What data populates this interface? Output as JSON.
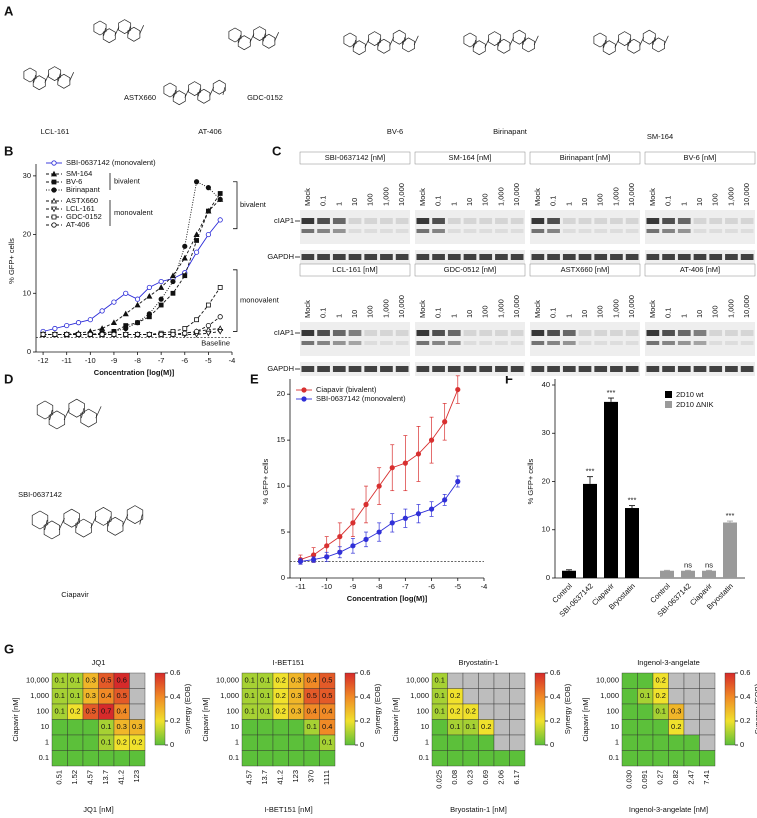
{
  "panels": [
    "A",
    "B",
    "C",
    "D",
    "E",
    "F",
    "G"
  ],
  "structures": {
    "A": [
      "LCL-161",
      "ASTX660",
      "AT-406",
      "GDC-0152",
      "BV-6",
      "Birinapant",
      "SM-164"
    ],
    "D": [
      "SBI-0637142",
      "Ciapavir"
    ]
  },
  "blots": {
    "titles": [
      "SBI-0637142 [nM]",
      "SM-164 [nM]",
      "Birinapant [nM]",
      "BV-6 [nM]",
      "LCL-161 [nM]",
      "GDC-0512 [nM]",
      "ASTX660 [nM]",
      "AT-406 [nM]"
    ],
    "lanes": [
      "Mock",
      "0.1",
      "1",
      "10",
      "100",
      "1,000",
      "10,000"
    ],
    "proteins": [
      "cIAP1",
      "GAPDH"
    ]
  },
  "chart_data": [
    {
      "type": "line",
      "x": [
        -12,
        -11.5,
        -11,
        -10.5,
        -10,
        -9.5,
        -9,
        -8.5,
        -8,
        -7.5,
        -7,
        -6.5,
        -6,
        -5.5,
        -5,
        -4.5
      ],
      "xlim": [
        -12.3,
        -4
      ],
      "xticks": [
        -12,
        -11,
        -10,
        -9,
        -8,
        -7,
        -6,
        -5,
        -4
      ],
      "ylim": [
        0,
        31
      ],
      "yticks": [
        0,
        10,
        20,
        30
      ],
      "xlabel": "Concentration [log(M)]",
      "ylabel": "% GFP+ cells",
      "baseline": 2.5,
      "baseline_label": "Baseline",
      "legend_group_labels": [
        "bivalent",
        "monovalent"
      ],
      "annotations": [
        "bivalent",
        "monovalent"
      ],
      "series": [
        {
          "name": "SBI-0637142 (monovalent)",
          "color": "#2a2ad8",
          "marker": "circle-open",
          "dash": "",
          "values": [
            3.5,
            4,
            4.5,
            5,
            5.5,
            7,
            8.5,
            10,
            9,
            11,
            12,
            12.5,
            13.5,
            17,
            20,
            22.5
          ]
        },
        {
          "name": "SM-164",
          "color": "#111111",
          "marker": "triangle",
          "dash": "3 2",
          "values": [
            3,
            3,
            3,
            3.2,
            3.5,
            4,
            5,
            6.5,
            8,
            9.5,
            11,
            13,
            16,
            20,
            24,
            26
          ]
        },
        {
          "name": "BV-6",
          "color": "#111111",
          "marker": "square",
          "dash": "3 2",
          "values": [
            3,
            3,
            3,
            3,
            3,
            3.2,
            3.5,
            4.5,
            5,
            6,
            8,
            10,
            13,
            19,
            24,
            27
          ]
        },
        {
          "name": "Birinapant",
          "color": "#111111",
          "marker": "circle",
          "dash": "1 1.5",
          "values": [
            3,
            3,
            3,
            3,
            3,
            3,
            3.5,
            4,
            5,
            6.5,
            9,
            12,
            18,
            29,
            28,
            26
          ]
        },
        {
          "name": "ASTX660",
          "color": "#111111",
          "marker": "triangle-open",
          "dash": "3 2",
          "values": [
            3,
            3,
            3,
            3,
            3,
            3,
            3,
            3,
            3,
            3,
            3,
            3,
            3.2,
            3.5,
            3.8,
            4
          ]
        },
        {
          "name": "LCL-161",
          "color": "#111111",
          "marker": "triangle-down-open",
          "dash": "3 2",
          "values": [
            3,
            3,
            3,
            3,
            3,
            3,
            3,
            3,
            3,
            3,
            3,
            3,
            3,
            3,
            3.2,
            3.5
          ]
        },
        {
          "name": "GDC-0152",
          "color": "#111111",
          "marker": "square-open",
          "dash": "3 2",
          "values": [
            3,
            3,
            3,
            3,
            3,
            3,
            3,
            3,
            3,
            3,
            3.2,
            3.5,
            4,
            5.5,
            8,
            11
          ]
        },
        {
          "name": "AT-406",
          "color": "#111111",
          "marker": "circle-open",
          "dash": "3 2",
          "values": [
            3,
            3,
            3,
            3,
            3,
            3,
            3,
            3,
            3,
            3,
            3,
            3,
            3.2,
            3.5,
            4.5,
            6
          ]
        }
      ]
    },
    {
      "type": "line",
      "x": [
        -11,
        -10.5,
        -10,
        -9.5,
        -9,
        -8.5,
        -8,
        -7.5,
        -7,
        -6.5,
        -6,
        -5.5,
        -5
      ],
      "xlim": [
        -11.4,
        -4
      ],
      "xticks": [
        -11,
        -10,
        -9,
        -8,
        -7,
        -6,
        -5,
        -4
      ],
      "ylim": [
        0,
        21
      ],
      "yticks": [
        0,
        5,
        10,
        15,
        20
      ],
      "xlabel": "Concentration [log(M)]",
      "ylabel": "% GFP+ cells",
      "baseline": 1.8,
      "series": [
        {
          "name": "Ciapavir (bivalent)",
          "color": "#d83030",
          "marker": "circle",
          "dash": "",
          "values": [
            2,
            2.5,
            3.5,
            4.5,
            6,
            8,
            10,
            12,
            12.5,
            13.5,
            15,
            17,
            20.5
          ],
          "errors": [
            0.5,
            0.8,
            1,
            1.5,
            1.5,
            2,
            2,
            2.5,
            3,
            3,
            2.5,
            2,
            1.5
          ]
        },
        {
          "name": "SBI-0637142 (monovalent)",
          "color": "#3030d8",
          "marker": "circle",
          "dash": "",
          "values": [
            1.8,
            2,
            2.3,
            2.8,
            3.5,
            4.2,
            5,
            6,
            6.5,
            7,
            7.5,
            8.5,
            10.5
          ],
          "errors": [
            0.3,
            0.3,
            0.5,
            0.6,
            0.8,
            0.8,
            1,
            1,
            1,
            1,
            0.8,
            0.6,
            0.6
          ]
        }
      ]
    },
    {
      "type": "bar",
      "categories": [
        "Control",
        "SBI-0637142",
        "Ciapavir",
        "Bryostatin",
        "Control",
        "SBI-0637142",
        "Ciapavir",
        "Bryostatin"
      ],
      "ylim": [
        0,
        40
      ],
      "yticks": [
        0,
        10,
        20,
        30,
        40
      ],
      "ylabel": "% GFP+ cells",
      "series": [
        {
          "name": "2D10 wt",
          "color": "#000000",
          "values": [
            1.5,
            19.5,
            36.5,
            14.5,
            null,
            null,
            null,
            null
          ],
          "errors": [
            0.2,
            1.5,
            0.8,
            0.5,
            null,
            null,
            null,
            null
          ],
          "significance": [
            null,
            "***",
            "***",
            "***",
            null,
            null,
            null,
            null
          ]
        },
        {
          "name": "2D10 ΔNIK",
          "color": "#9a9a9a",
          "values": [
            null,
            null,
            null,
            null,
            1.5,
            1.5,
            1.5,
            11.5
          ],
          "errors": [
            null,
            null,
            null,
            null,
            0.1,
            0.1,
            0.1,
            0.3
          ],
          "significance": [
            null,
            null,
            null,
            null,
            null,
            "ns",
            "ns",
            "***"
          ]
        }
      ]
    },
    {
      "type": "heatmap",
      "title": "JQ1",
      "xlabel": "JQ1 [nM]",
      "ylabel": "Ciapavir [nM]",
      "x_categories": [
        "0.51",
        "1.52",
        "4.57",
        "13.7",
        "41.2",
        "123"
      ],
      "y_categories": [
        "10,000",
        "1,000",
        "100",
        "10",
        "1",
        "0.1"
      ],
      "values": [
        [
          0.1,
          0.1,
          0.3,
          0.5,
          0.6,
          null
        ],
        [
          0.1,
          0.1,
          0.3,
          0.4,
          0.5,
          null
        ],
        [
          0.1,
          0.2,
          0.5,
          0.7,
          0.4,
          null
        ],
        [
          0,
          0,
          0,
          0.1,
          0.3,
          0.3
        ],
        [
          0,
          0,
          0,
          0.1,
          0.2,
          0.2
        ],
        [
          0,
          0,
          0,
          0,
          0,
          0
        ]
      ],
      "colorbar": {
        "label": "Synergy (EOB)",
        "lim": [
          0,
          0.6
        ],
        "ticks": [
          0,
          0.2,
          0.4,
          0.6
        ],
        "colors": [
          "#5cc03a",
          "#f0e12c",
          "#f08a26",
          "#d62a2a"
        ]
      },
      "missing_color": "#bdbdbd"
    },
    {
      "type": "heatmap",
      "title": "I-BET151",
      "xlabel": "I-BET151 [nM]",
      "ylabel": "Ciapavir [nM]",
      "x_categories": [
        "4.57",
        "13.7",
        "41.2",
        "123",
        "370",
        "1111"
      ],
      "y_categories": [
        "10,000",
        "1,000",
        "100",
        "10",
        "1",
        "0.1"
      ],
      "values": [
        [
          0.1,
          0.1,
          0.2,
          0.3,
          0.4,
          0.5
        ],
        [
          0.1,
          0.1,
          0.2,
          0.3,
          0.5,
          0.5
        ],
        [
          0.1,
          0.1,
          0.2,
          0.3,
          0.4,
          0.4
        ],
        [
          0,
          0,
          0,
          0,
          0.1,
          0.4
        ],
        [
          0,
          0,
          0,
          0,
          0,
          0.1
        ],
        [
          0,
          0,
          0,
          0,
          0,
          0
        ]
      ],
      "colorbar": {
        "label": "Synergy (EOB)",
        "lim": [
          0,
          0.6
        ],
        "ticks": [
          0,
          0.2,
          0.4,
          0.6
        ],
        "colors": [
          "#5cc03a",
          "#f0e12c",
          "#f08a26",
          "#d62a2a"
        ]
      },
      "missing_color": "#bdbdbd"
    },
    {
      "type": "heatmap",
      "title": "Bryostatin-1",
      "xlabel": "Bryostatin-1 [nM]",
      "ylabel": "Ciapavir [nM]",
      "x_categories": [
        "0.025",
        "0.08",
        "0.23",
        "0.69",
        "2.06",
        "6.17"
      ],
      "y_categories": [
        "10,000",
        "1,000",
        "100",
        "10",
        "1",
        "0.1"
      ],
      "values": [
        [
          0.1,
          null,
          null,
          null,
          null,
          null
        ],
        [
          0.1,
          0.2,
          null,
          null,
          null,
          null
        ],
        [
          0.1,
          0.2,
          0.2,
          null,
          null,
          null
        ],
        [
          0,
          0.1,
          0.1,
          0.2,
          null,
          null
        ],
        [
          0,
          0,
          0,
          0,
          null,
          null
        ],
        [
          0,
          0,
          0,
          0,
          0,
          0
        ]
      ],
      "colorbar": {
        "label": "Synergy (EOB)",
        "lim": [
          0,
          0.6
        ],
        "ticks": [
          0,
          0.2,
          0.4,
          0.6
        ],
        "colors": [
          "#5cc03a",
          "#f0e12c",
          "#f08a26",
          "#d62a2a"
        ]
      },
      "missing_color": "#bdbdbd"
    },
    {
      "type": "heatmap",
      "title": "Ingenol-3-angelate",
      "xlabel": "Ingenol-3-angelate [nM]",
      "ylabel": "Ciapavir [nM]",
      "x_categories": [
        "0.030",
        "0.091",
        "0.27",
        "0.82",
        "2.47",
        "7.41"
      ],
      "y_categories": [
        "10,000",
        "1,000",
        "100",
        "10",
        "1",
        "0.1"
      ],
      "values": [
        [
          0,
          0,
          0.2,
          null,
          null,
          null
        ],
        [
          0,
          0.1,
          0.2,
          null,
          null,
          null
        ],
        [
          0,
          0,
          0.1,
          0.3,
          null,
          null
        ],
        [
          0,
          0,
          0,
          0.2,
          null,
          null
        ],
        [
          0,
          0,
          0,
          0,
          0,
          null
        ],
        [
          0,
          0,
          0,
          0,
          0,
          0
        ]
      ],
      "colorbar": {
        "label": "Synergy (EOB)",
        "lim": [
          0,
          0.6
        ],
        "ticks": [
          0,
          0.2,
          0.4,
          0.6
        ],
        "colors": [
          "#5cc03a",
          "#f0e12c",
          "#f08a26",
          "#d62a2a"
        ]
      },
      "missing_color": "#bdbdbd"
    }
  ]
}
